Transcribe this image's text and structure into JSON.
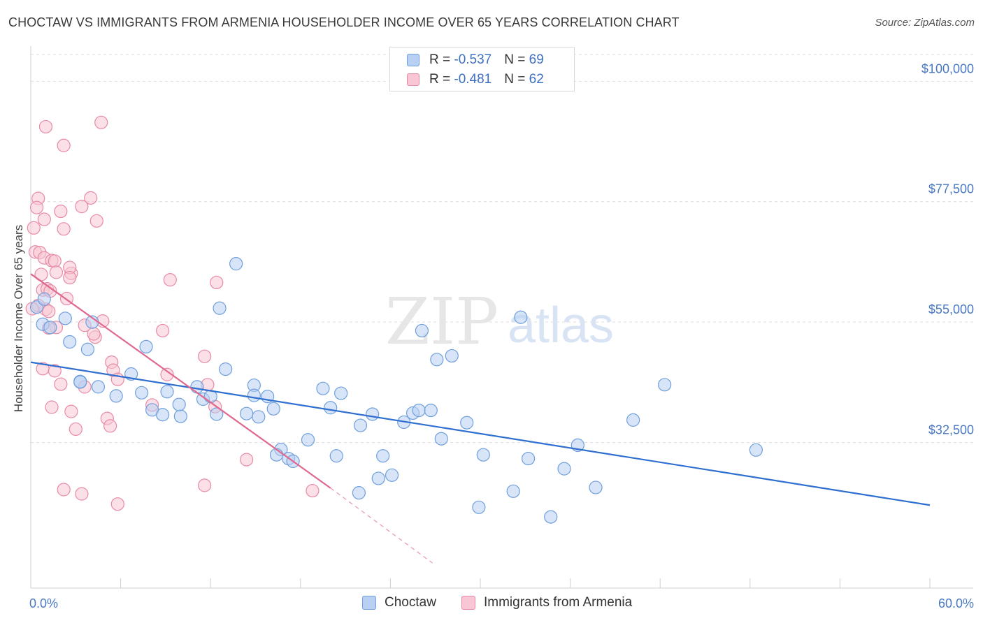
{
  "title": "CHOCTAW VS IMMIGRANTS FROM ARMENIA HOUSEHOLDER INCOME OVER 65 YEARS CORRELATION CHART",
  "source": "Source: ZipAtlas.com",
  "watermark": {
    "zip": "ZIP",
    "atlas": "atlas"
  },
  "legend": {
    "rows": [
      {
        "r_label": "R = ",
        "r_value": "-0.537",
        "n_label": "N = ",
        "n_value": "69"
      },
      {
        "r_label": "R = ",
        "r_value": "-0.481",
        "n_label": "N = ",
        "n_value": "62"
      }
    ]
  },
  "colors": {
    "blue_fill": "#b8d0f2",
    "blue_stroke": "#6f9fdc",
    "blue_line": "#2e6fd0",
    "pink_fill": "#f8c6d4",
    "pink_stroke": "#e88aa6",
    "pink_line": "#e0688f",
    "grid": "#dddddd",
    "axis_text": "#4a78c2"
  },
  "chart_data": {
    "type": "scatter",
    "title": "CHOCTAW VS IMMIGRANTS FROM ARMENIA HOUSEHOLDER INCOME OVER 65 YEARS CORRELATION CHART",
    "xlabel": "",
    "ylabel": "Householder Income Over 65 years",
    "xlim": [
      0,
      60
    ],
    "ylim": [
      10000,
      105000
    ],
    "x_tick_labels": [
      "0.0%",
      "60.0%"
    ],
    "y_ticks": [
      32500,
      55000,
      77500,
      100000
    ],
    "y_tick_labels": [
      "$32,500",
      "$55,000",
      "$77,500",
      "$100,000"
    ],
    "grid": true,
    "legend_position": "bottom",
    "series": [
      {
        "name": "Choctaw",
        "color": "#b8d0f2",
        "trend": {
          "x": [
            0,
            60
          ],
          "y": [
            47500,
            20800
          ]
        },
        "points": [
          [
            0.4,
            57800
          ],
          [
            0.9,
            59300
          ],
          [
            0.8,
            54600
          ],
          [
            1.3,
            54000
          ],
          [
            2.3,
            55700
          ],
          [
            2.6,
            51300
          ],
          [
            4.1,
            55000
          ],
          [
            3.8,
            49900
          ],
          [
            7.7,
            50400
          ],
          [
            3.3,
            43900
          ],
          [
            4.5,
            42900
          ],
          [
            6.7,
            45300
          ],
          [
            5.7,
            41200
          ],
          [
            7.4,
            41800
          ],
          [
            9.1,
            42000
          ],
          [
            8.1,
            38600
          ],
          [
            8.8,
            37700
          ],
          [
            10.0,
            37400
          ],
          [
            9.9,
            39600
          ],
          [
            11.1,
            42900
          ],
          [
            11.5,
            40600
          ],
          [
            12.0,
            41100
          ],
          [
            13.0,
            46200
          ],
          [
            12.6,
            57600
          ],
          [
            12.4,
            37800
          ],
          [
            13.7,
            65900
          ],
          [
            14.4,
            37900
          ],
          [
            14.9,
            43200
          ],
          [
            14.9,
            41300
          ],
          [
            15.2,
            37300
          ],
          [
            15.8,
            41100
          ],
          [
            16.2,
            38800
          ],
          [
            16.7,
            31200
          ],
          [
            16.4,
            30200
          ],
          [
            17.2,
            29500
          ],
          [
            17.5,
            29000
          ],
          [
            18.5,
            33000
          ],
          [
            19.5,
            42600
          ],
          [
            20.0,
            39000
          ],
          [
            20.4,
            30000
          ],
          [
            20.7,
            41700
          ],
          [
            22.0,
            35700
          ],
          [
            21.9,
            23100
          ],
          [
            22.8,
            37800
          ],
          [
            23.2,
            25800
          ],
          [
            23.5,
            30000
          ],
          [
            24.1,
            26400
          ],
          [
            24.9,
            36300
          ],
          [
            25.5,
            38000
          ],
          [
            25.9,
            38500
          ],
          [
            26.7,
            38500
          ],
          [
            26.1,
            53400
          ],
          [
            27.1,
            48000
          ],
          [
            27.4,
            33200
          ],
          [
            28.1,
            48700
          ],
          [
            29.1,
            36200
          ],
          [
            29.9,
            20400
          ],
          [
            30.2,
            30200
          ],
          [
            32.2,
            23400
          ],
          [
            32.7,
            55900
          ],
          [
            33.2,
            29500
          ],
          [
            34.7,
            18600
          ],
          [
            35.6,
            27600
          ],
          [
            36.5,
            32000
          ],
          [
            37.7,
            24100
          ],
          [
            40.2,
            36700
          ],
          [
            42.3,
            43300
          ],
          [
            48.4,
            31100
          ],
          [
            3.3,
            43800
          ]
        ]
      },
      {
        "name": "Immigrants from Armenia",
        "color": "#f8c6d4",
        "trend": {
          "x": [
            0,
            20
          ],
          "y": [
            64000,
            24000
          ]
        },
        "trend_dashed": {
          "x": [
            20,
            26.8
          ],
          "y": [
            24000,
            10000
          ]
        },
        "points": [
          [
            1.0,
            91500
          ],
          [
            2.2,
            88000
          ],
          [
            4.7,
            92300
          ],
          [
            0.5,
            78100
          ],
          [
            0.4,
            76400
          ],
          [
            2.0,
            75700
          ],
          [
            4.0,
            78200
          ],
          [
            3.4,
            76600
          ],
          [
            0.9,
            74200
          ],
          [
            4.4,
            73900
          ],
          [
            0.2,
            72600
          ],
          [
            2.2,
            72400
          ],
          [
            0.3,
            68100
          ],
          [
            0.6,
            68000
          ],
          [
            0.9,
            67000
          ],
          [
            1.4,
            66500
          ],
          [
            1.6,
            66400
          ],
          [
            0.7,
            63900
          ],
          [
            1.7,
            64300
          ],
          [
            2.7,
            64100
          ],
          [
            2.6,
            65200
          ],
          [
            2.6,
            63300
          ],
          [
            0.8,
            61000
          ],
          [
            1.1,
            61200
          ],
          [
            1.3,
            60800
          ],
          [
            2.4,
            59400
          ],
          [
            1.0,
            57400
          ],
          [
            0.5,
            58100
          ],
          [
            1.2,
            57000
          ],
          [
            1.7,
            54000
          ],
          [
            1.2,
            53900
          ],
          [
            4.8,
            55200
          ],
          [
            3.6,
            54400
          ],
          [
            4.3,
            52200
          ],
          [
            4.2,
            52800
          ],
          [
            9.3,
            62900
          ],
          [
            8.8,
            53400
          ],
          [
            12.4,
            62400
          ],
          [
            11.6,
            48600
          ],
          [
            5.4,
            47500
          ],
          [
            5.5,
            46000
          ],
          [
            0.8,
            46300
          ],
          [
            1.6,
            45900
          ],
          [
            9.1,
            45200
          ],
          [
            3.6,
            42900
          ],
          [
            2.0,
            43400
          ],
          [
            11.8,
            43300
          ],
          [
            12.3,
            39200
          ],
          [
            1.4,
            39100
          ],
          [
            2.7,
            38300
          ],
          [
            5.1,
            37000
          ],
          [
            8.1,
            39500
          ],
          [
            5.3,
            35600
          ],
          [
            3.0,
            35000
          ],
          [
            14.4,
            29300
          ],
          [
            11.6,
            24500
          ],
          [
            2.2,
            23700
          ],
          [
            3.4,
            22900
          ],
          [
            5.8,
            21000
          ],
          [
            18.8,
            23500
          ],
          [
            0.1,
            57500
          ],
          [
            5.8,
            44300
          ]
        ]
      }
    ]
  },
  "bottom_legend": [
    {
      "label": "Choctaw"
    },
    {
      "label": "Immigrants from Armenia"
    }
  ]
}
